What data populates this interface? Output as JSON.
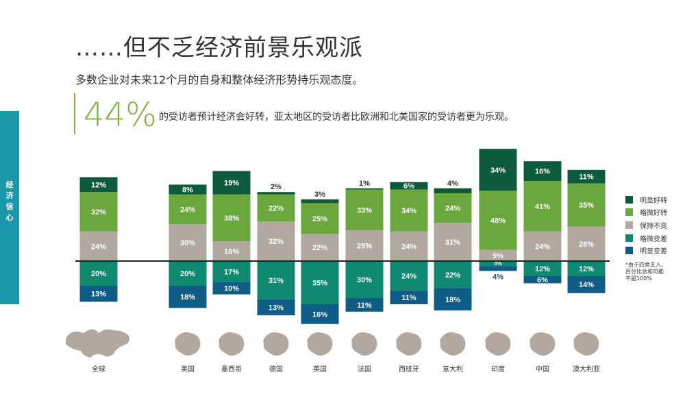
{
  "header": {
    "title": "……但不乏经济前景乐观派",
    "subtitle": "多数企业对未来12个月的自身和整体经济形势持乐观态度。",
    "highlight_value": "44%",
    "highlight_text": "的受访者预计经济会好转，亚太地区的受访者比欧洲和北美国家的受访者更为乐观。"
  },
  "side_tab": {
    "chars": [
      "经",
      "济",
      "信",
      "心"
    ]
  },
  "legend": [
    {
      "label": "明显好转",
      "color": "#0e5a3c"
    },
    {
      "label": "略微好转",
      "color": "#6aa83e"
    },
    {
      "label": "保持不变",
      "color": "#b3a8a0"
    },
    {
      "label": "略微变差",
      "color": "#0f8a70"
    },
    {
      "label": "明显变差",
      "color": "#0f5c86"
    }
  ],
  "footnote": [
    "*由于四舍五入，",
    "百分比总和可能",
    "不是100%"
  ],
  "chart_data": {
    "type": "bar",
    "stacked": "diverging",
    "categories": [
      "全球",
      "美国",
      "墨西哥",
      "德国",
      "英国",
      "法国",
      "西班牙",
      "意大利",
      "印度",
      "中国",
      "澳大利亚"
    ],
    "series": [
      {
        "name": "明显好转",
        "color": "#0e5a3c",
        "values": [
          12,
          8,
          19,
          2,
          3,
          1,
          6,
          4,
          34,
          16,
          11
        ]
      },
      {
        "name": "略微好转",
        "color": "#6aa83e",
        "values": [
          32,
          24,
          38,
          22,
          25,
          33,
          34,
          24,
          48,
          41,
          35
        ]
      },
      {
        "name": "保持不变",
        "color": "#b3a8a0",
        "values": [
          24,
          30,
          16,
          32,
          22,
          25,
          24,
          31,
          9,
          24,
          28
        ]
      },
      {
        "name": "略微变差",
        "color": "#0f8a70",
        "values": [
          20,
          20,
          17,
          31,
          35,
          30,
          24,
          22,
          4,
          12,
          12
        ]
      },
      {
        "name": "明显变差",
        "color": "#0f5c86",
        "values": [
          13,
          18,
          10,
          13,
          16,
          11,
          11,
          18,
          4,
          6,
          14
        ]
      }
    ]
  }
}
